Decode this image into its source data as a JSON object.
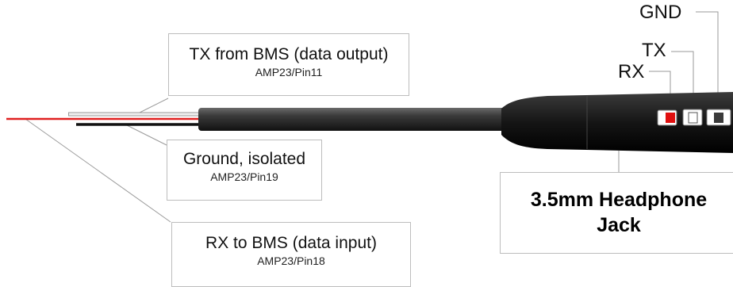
{
  "labels": {
    "tx": {
      "title": "TX from BMS (data output)",
      "sub": "AMP23/Pin11"
    },
    "gnd": {
      "title": "Ground, isolated",
      "sub": "AMP23/Pin19"
    },
    "rx": {
      "title": "RX to BMS (data input)",
      "sub": "AMP23/Pin18"
    }
  },
  "jack": {
    "line1": "3.5mm Headphone",
    "line2": "Jack"
  },
  "pins": {
    "gnd": "GND",
    "tx": "TX",
    "rx": "RX"
  },
  "colors": {
    "rx_wire": "#e02020",
    "gnd_wire": "#111111",
    "tx_wire": "#e6e6e6",
    "cable": "#2b2b2b",
    "rx_contact": "#e01010"
  }
}
